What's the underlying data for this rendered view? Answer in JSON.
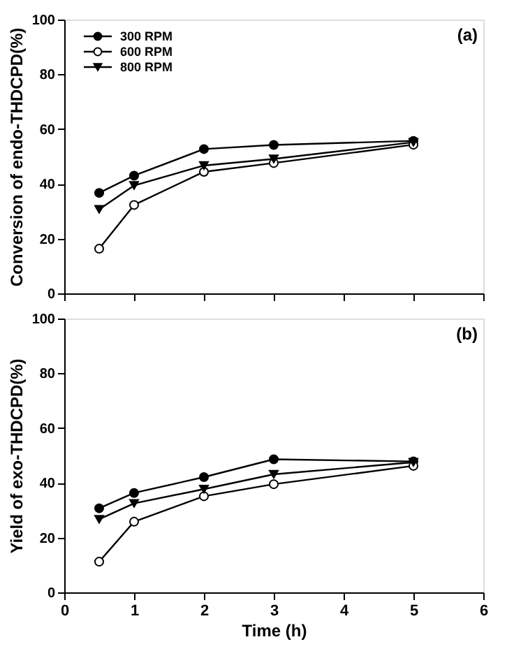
{
  "chart_data": [
    {
      "type": "line",
      "ylabel": "Conversion of endo-THDCPD(%)",
      "xlim": [
        0,
        6
      ],
      "xticks": [
        0,
        1,
        2,
        3,
        4,
        5,
        6
      ],
      "ylim": [
        0,
        100
      ],
      "yticks": [
        0,
        20,
        40,
        60,
        80,
        100
      ],
      "tick_labels": "y",
      "legend": "top left",
      "annotations": [
        "(a)"
      ],
      "x": [
        0.5,
        1,
        2,
        3,
        5
      ],
      "series": [
        {
          "name": "300 RPM",
          "color": "#000000",
          "marker": "circle",
          "values": [
            36.7,
            43,
            52.7,
            54.2,
            55.7
          ]
        },
        {
          "name": "600 RPM",
          "color": "#000000",
          "marker": "circle-open",
          "values": [
            16.3,
            32.3,
            44.4,
            47.6,
            54.3
          ]
        },
        {
          "name": "800 RPM",
          "color": "#000000",
          "marker": "triangle",
          "values": [
            30.7,
            39.4,
            46.7,
            49.1,
            55.2
          ]
        }
      ]
    },
    {
      "type": "line",
      "xlabel": "Time (h)",
      "ylabel": "Yield of exo-THDCPD(%)",
      "xlim": [
        0,
        6
      ],
      "xticks": [
        0,
        1,
        2,
        3,
        4,
        5,
        6
      ],
      "ylim": [
        0,
        100
      ],
      "yticks": [
        0,
        20,
        40,
        60,
        80,
        100
      ],
      "annotations": [
        "(b)"
      ],
      "x": [
        0.5,
        1,
        2,
        3,
        5
      ],
      "series": [
        {
          "color": "#000000",
          "marker": "circle",
          "values": [
            30.7,
            36.3,
            42.1,
            48.6,
            47.8
          ]
        },
        {
          "color": "#000000",
          "marker": "circle-open",
          "values": [
            11.2,
            25.8,
            35.1,
            39.5,
            46.2
          ]
        },
        {
          "color": "#000000",
          "marker": "triangle",
          "values": [
            26.7,
            32.5,
            37.7,
            43.1,
            47.5
          ]
        }
      ]
    }
  ]
}
